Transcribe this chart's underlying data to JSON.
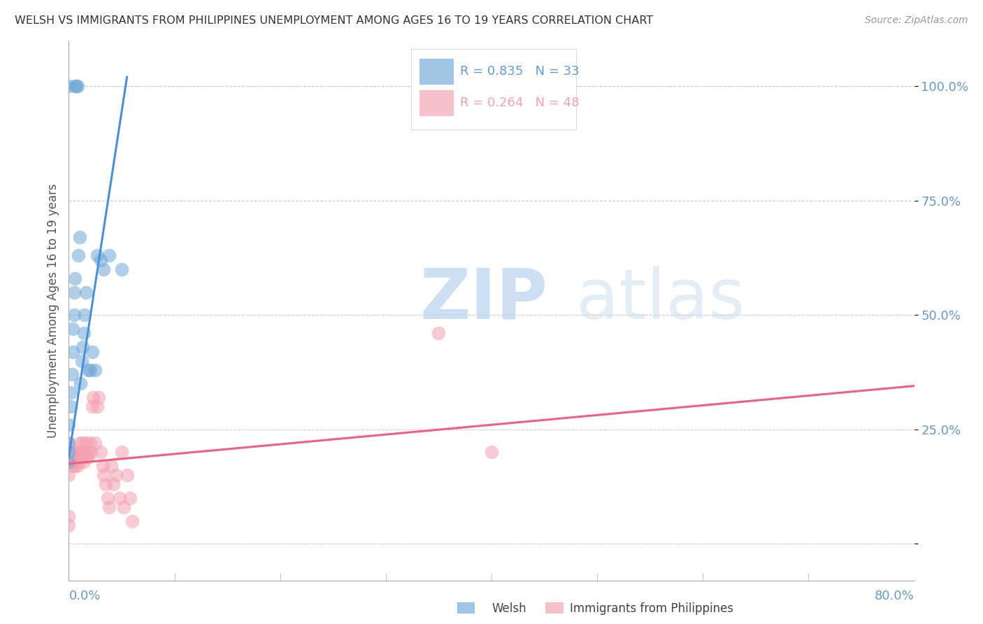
{
  "title": "WELSH VS IMMIGRANTS FROM PHILIPPINES UNEMPLOYMENT AMONG AGES 16 TO 19 YEARS CORRELATION CHART",
  "source": "Source: ZipAtlas.com",
  "ylabel": "Unemployment Among Ages 16 to 19 years",
  "xlim": [
    0.0,
    0.8
  ],
  "ylim": [
    -0.08,
    1.1
  ],
  "yticks": [
    0.0,
    0.25,
    0.5,
    0.75,
    1.0
  ],
  "ytick_labels": [
    "",
    "25.0%",
    "50.0%",
    "75.0%",
    "100.0%"
  ],
  "watermark_zip": "ZIP",
  "watermark_atlas": "atlas",
  "legend_welsh_R": "0.835",
  "legend_welsh_N": "33",
  "legend_phil_R": "0.264",
  "legend_phil_N": "48",
  "welsh_color": "#6EA8D8",
  "phil_color": "#F4A0B0",
  "welsh_line_color": "#4A90D9",
  "phil_line_color": "#F06080",
  "axis_color": "#6699CC",
  "welsh_x": [
    0.0,
    0.0,
    0.0,
    0.0,
    0.0,
    0.002,
    0.002,
    0.003,
    0.004,
    0.004,
    0.005,
    0.005,
    0.006,
    0.006,
    0.007,
    0.008,
    0.009,
    0.01,
    0.011,
    0.012,
    0.013,
    0.014,
    0.015,
    0.016,
    0.018,
    0.02,
    0.022,
    0.025,
    0.027,
    0.03,
    0.033,
    0.038,
    0.05
  ],
  "welsh_y": [
    0.18,
    0.2,
    0.22,
    0.26,
    1.0,
    0.3,
    0.33,
    0.37,
    0.42,
    0.47,
    0.5,
    0.55,
    0.58,
    1.0,
    1.0,
    1.0,
    0.63,
    0.67,
    0.35,
    0.4,
    0.43,
    0.46,
    0.5,
    0.55,
    0.38,
    0.38,
    0.42,
    0.38,
    0.63,
    0.62,
    0.6,
    0.63,
    0.6
  ],
  "phil_x": [
    0.0,
    0.0,
    0.0,
    0.0,
    0.0,
    0.002,
    0.003,
    0.004,
    0.005,
    0.006,
    0.007,
    0.008,
    0.009,
    0.01,
    0.01,
    0.011,
    0.012,
    0.013,
    0.014,
    0.015,
    0.016,
    0.017,
    0.018,
    0.019,
    0.02,
    0.021,
    0.022,
    0.023,
    0.025,
    0.027,
    0.028,
    0.03,
    0.032,
    0.033,
    0.035,
    0.037,
    0.038,
    0.04,
    0.042,
    0.045,
    0.048,
    0.05,
    0.052,
    0.055,
    0.058,
    0.06,
    0.35,
    0.4
  ],
  "phil_y": [
    0.04,
    0.06,
    0.15,
    0.18,
    0.22,
    0.18,
    0.2,
    0.17,
    0.19,
    0.17,
    0.2,
    0.17,
    0.18,
    0.2,
    0.22,
    0.19,
    0.2,
    0.22,
    0.18,
    0.2,
    0.22,
    0.19,
    0.19,
    0.2,
    0.22,
    0.2,
    0.3,
    0.32,
    0.22,
    0.3,
    0.32,
    0.2,
    0.17,
    0.15,
    0.13,
    0.1,
    0.08,
    0.17,
    0.13,
    0.15,
    0.1,
    0.2,
    0.08,
    0.15,
    0.1,
    0.05,
    0.46,
    0.2
  ],
  "welsh_line_x0": 0.0,
  "welsh_line_x1": 0.055,
  "welsh_line_y0": 0.19,
  "welsh_line_y1": 1.02,
  "phil_line_x0": 0.0,
  "phil_line_x1": 0.8,
  "phil_line_y0": 0.175,
  "phil_line_y1": 0.345
}
